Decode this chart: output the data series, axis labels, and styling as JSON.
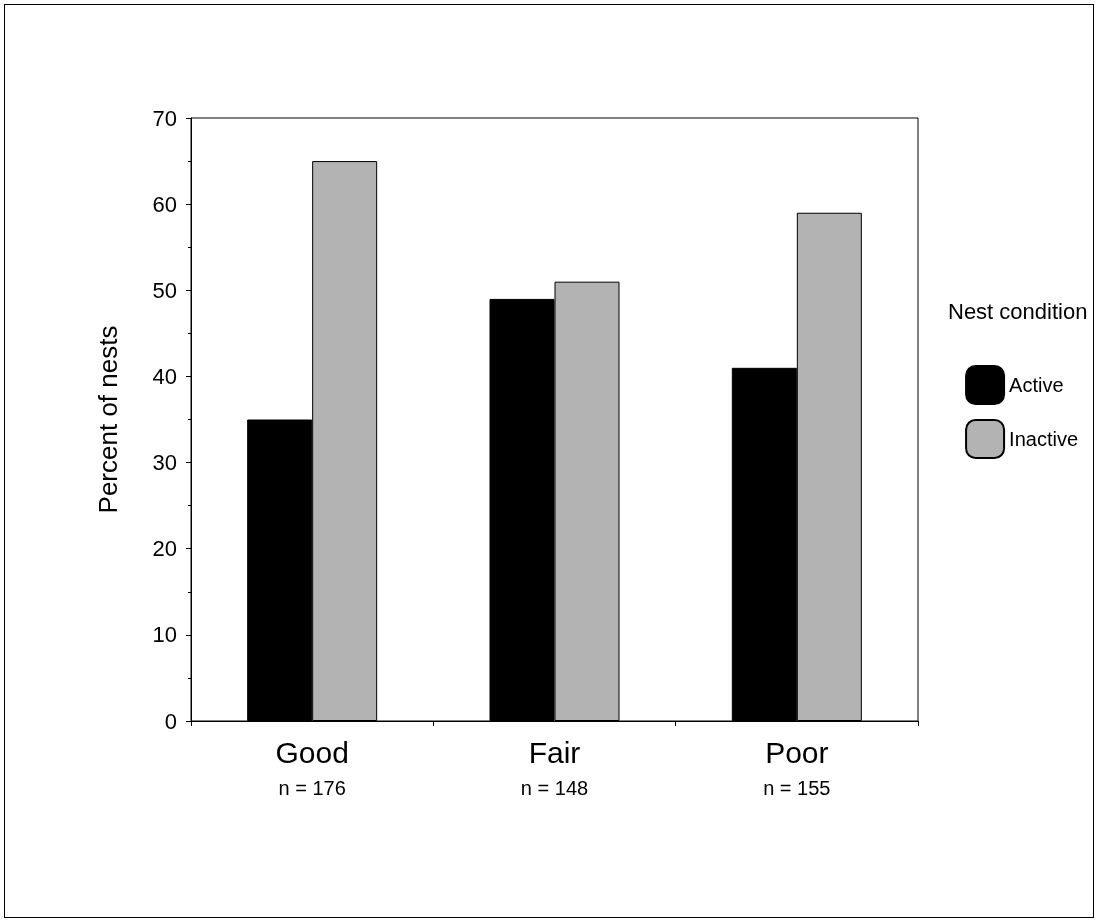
{
  "chart_data": {
    "type": "bar",
    "ylabel": "Percent of nests",
    "legend_title": "Nest condition",
    "categories": [
      "Good\nn = 176",
      "Fair\nn = 148",
      "Poor\nn = 155"
    ],
    "series": [
      {
        "name": "Active",
        "color": "#000000",
        "values": [
          35,
          49,
          41
        ]
      },
      {
        "name": "Inactive",
        "color": "#b3b3b3",
        "values": [
          65,
          51,
          59
        ]
      }
    ],
    "ylim": [
      0,
      70
    ],
    "yticks": [
      0,
      10,
      20,
      30,
      40,
      50,
      60,
      70
    ],
    "grid": false,
    "legend": "right"
  }
}
